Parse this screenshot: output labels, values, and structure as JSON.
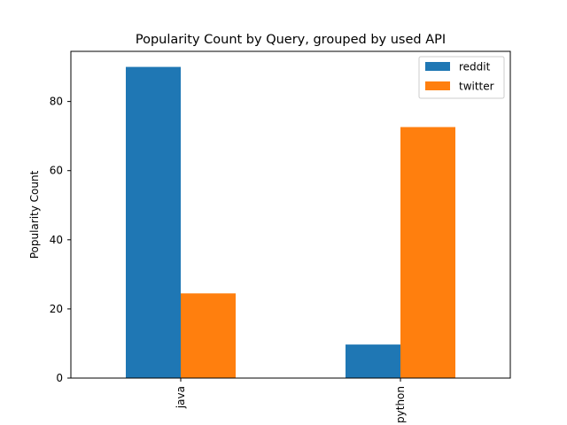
{
  "chart_data": {
    "type": "bar",
    "title": "Popularity Count by Query, grouped by used API",
    "xlabel": "",
    "ylabel": "Popularity Count",
    "categories": [
      "java",
      "python"
    ],
    "series": [
      {
        "name": "reddit",
        "color": "#1f77b4",
        "values": [
          90,
          9.7
        ]
      },
      {
        "name": "twitter",
        "color": "#ff7f0e",
        "values": [
          24.5,
          72.6
        ]
      }
    ],
    "ylim": [
      0,
      94.5
    ],
    "yticks": [
      0,
      20,
      40,
      60,
      80
    ],
    "legend_position": "top-right",
    "grid": false
  }
}
